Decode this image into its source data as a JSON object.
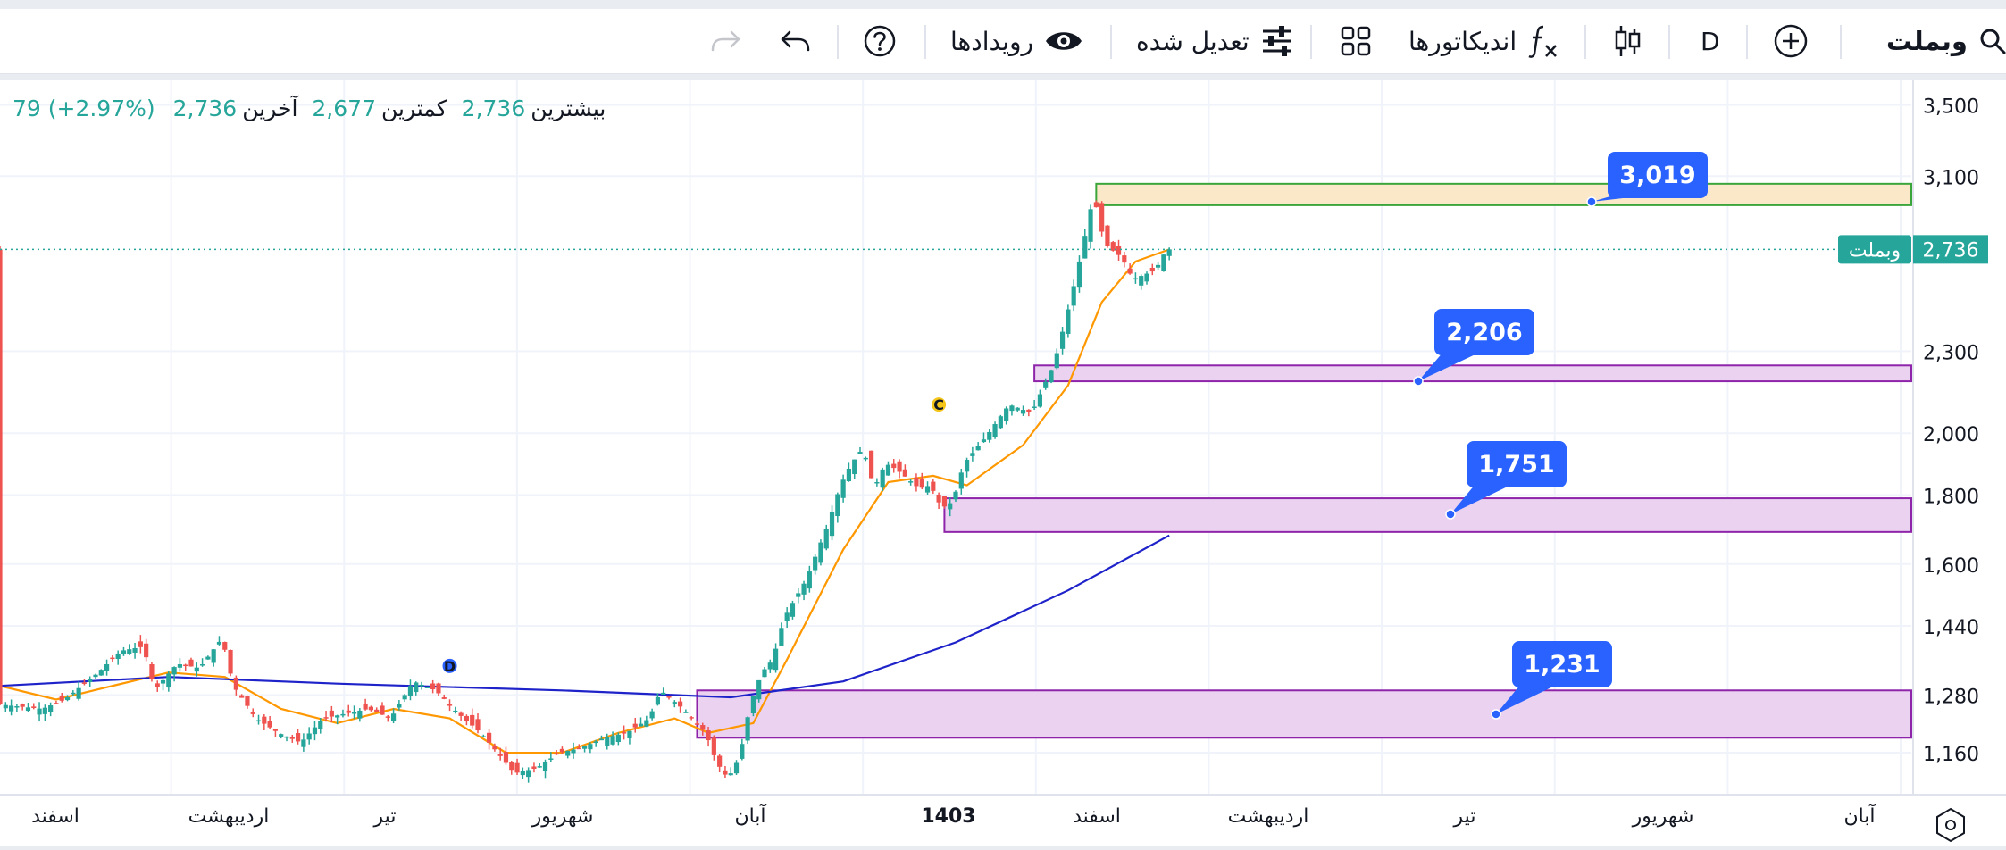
{
  "toolbar": {
    "symbol": "وبملت",
    "interval": "D",
    "indicators_label": "اندیکاتورها",
    "adjusted_label": "تعدیل شده",
    "events_label": "رویدادها",
    "icons": [
      "search-icon",
      "add-symbol-icon",
      "candles-icon",
      "fx-icon",
      "templates-icon",
      "sliders-icon",
      "eye-icon",
      "help-icon",
      "undo-icon",
      "redo-icon"
    ]
  },
  "legend": {
    "high_label": "بیشترین",
    "high_value": "2,736",
    "low_label": "کمترین",
    "low_value": "2,677",
    "last_label": "آخرین",
    "last_value": "2,736",
    "change": "79 (+2.97%)"
  },
  "chart_data": {
    "type": "candlestick",
    "symbol": "وبملت",
    "last_price": 2736,
    "last_price_label": "2,736",
    "y_scale": "log",
    "ylim": [
      1080,
      3650
    ],
    "y_ticks": [
      1160,
      1280,
      1440,
      1600,
      1800,
      2000,
      2300,
      3100,
      3500
    ],
    "y_tick_labels": [
      "1,160",
      "1,280",
      "1,440",
      "1,600",
      "1,800",
      "2,000",
      "2,300",
      "3,100",
      "3,500"
    ],
    "x_labels": [
      {
        "text": "اسفند",
        "bold": false
      },
      {
        "text": "اردیبهشت",
        "bold": false
      },
      {
        "text": "تیر",
        "bold": false
      },
      {
        "text": "شهریور",
        "bold": false
      },
      {
        "text": "آبان",
        "bold": false
      },
      {
        "text": "1403",
        "bold": true
      },
      {
        "text": "اسفند",
        "bold": false
      },
      {
        "text": "اردیبهشت",
        "bold": false
      },
      {
        "text": "تیر",
        "bold": false
      },
      {
        "text": "شهریور",
        "bold": false
      },
      {
        "text": "آبان",
        "bold": false
      }
    ],
    "zones": [
      {
        "low": 2950,
        "high": 3060,
        "fill": "#fbe8c8",
        "stroke": "#3aa53a"
      },
      {
        "low": 2185,
        "high": 2245,
        "fill": "#ead2f0",
        "stroke": "#8e24aa"
      },
      {
        "low": 1690,
        "high": 1790,
        "fill": "#ead2f0",
        "stroke": "#8e24aa"
      },
      {
        "low": 1190,
        "high": 1290,
        "fill": "#ead2f0",
        "stroke": "#8e24aa"
      }
    ],
    "callouts": [
      "3,019",
      "2,206",
      "1,751",
      "1,231"
    ],
    "markers": [
      {
        "text": "D",
        "color": "#2962ff"
      },
      {
        "text": "C",
        "color": "#f5c518"
      }
    ],
    "series": [
      {
        "type": "ohlc",
        "up_color": "#26a69a",
        "down_color": "#ef5350",
        "points": [
          [
            0,
            1260
          ],
          [
            8,
            1250
          ],
          [
            12,
            1270
          ],
          [
            18,
            1330
          ],
          [
            22,
            1380
          ],
          [
            26,
            1390
          ],
          [
            28,
            1290
          ],
          [
            32,
            1350
          ],
          [
            36,
            1340
          ],
          [
            40,
            1410
          ],
          [
            42,
            1300
          ],
          [
            46,
            1230
          ],
          [
            50,
            1200
          ],
          [
            54,
            1180
          ],
          [
            58,
            1230
          ],
          [
            62,
            1240
          ],
          [
            66,
            1250
          ],
          [
            70,
            1230
          ],
          [
            74,
            1310
          ],
          [
            78,
            1290
          ],
          [
            82,
            1240
          ],
          [
            86,
            1200
          ],
          [
            92,
            1120
          ],
          [
            96,
            1130
          ],
          [
            100,
            1160
          ],
          [
            104,
            1170
          ],
          [
            108,
            1190
          ],
          [
            112,
            1200
          ],
          [
            116,
            1230
          ],
          [
            118,
            1290
          ],
          [
            122,
            1250
          ],
          [
            126,
            1200
          ],
          [
            128,
            1140
          ],
          [
            130,
            1110
          ],
          [
            132,
            1150
          ],
          [
            134,
            1260
          ],
          [
            136,
            1330
          ],
          [
            138,
            1360
          ],
          [
            140,
            1460
          ],
          [
            144,
            1560
          ],
          [
            148,
            1720
          ],
          [
            150,
            1830
          ],
          [
            152,
            1900
          ],
          [
            154,
            1950
          ],
          [
            156,
            1820
          ],
          [
            158,
            1900
          ],
          [
            160,
            1880
          ],
          [
            162,
            1850
          ],
          [
            164,
            1820
          ],
          [
            166,
            1830
          ],
          [
            168,
            1760
          ],
          [
            170,
            1780
          ],
          [
            172,
            1900
          ],
          [
            176,
            1990
          ],
          [
            180,
            2100
          ],
          [
            184,
            2070
          ],
          [
            186,
            2160
          ],
          [
            188,
            2250
          ],
          [
            190,
            2420
          ],
          [
            192,
            2620
          ],
          [
            194,
            2860
          ],
          [
            195,
            3000
          ],
          [
            197,
            2760
          ],
          [
            200,
            2700
          ],
          [
            202,
            2600
          ],
          [
            206,
            2640
          ],
          [
            208,
            2736
          ]
        ]
      },
      {
        "type": "line",
        "color": "#ff9800",
        "points": [
          [
            0,
            1300
          ],
          [
            10,
            1270
          ],
          [
            20,
            1300
          ],
          [
            30,
            1330
          ],
          [
            40,
            1320
          ],
          [
            50,
            1250
          ],
          [
            60,
            1220
          ],
          [
            70,
            1250
          ],
          [
            80,
            1230
          ],
          [
            90,
            1160
          ],
          [
            100,
            1160
          ],
          [
            110,
            1200
          ],
          [
            120,
            1230
          ],
          [
            126,
            1200
          ],
          [
            134,
            1220
          ],
          [
            140,
            1360
          ],
          [
            150,
            1640
          ],
          [
            158,
            1840
          ],
          [
            166,
            1860
          ],
          [
            172,
            1830
          ],
          [
            182,
            1960
          ],
          [
            190,
            2170
          ],
          [
            196,
            2500
          ],
          [
            202,
            2680
          ],
          [
            208,
            2736
          ]
        ]
      },
      {
        "type": "line",
        "color": "#1e22c9",
        "points": [
          [
            0,
            1300
          ],
          [
            30,
            1320
          ],
          [
            60,
            1305
          ],
          [
            100,
            1290
          ],
          [
            130,
            1275
          ],
          [
            150,
            1310
          ],
          [
            170,
            1400
          ],
          [
            190,
            1530
          ],
          [
            208,
            1680
          ]
        ]
      }
    ]
  }
}
